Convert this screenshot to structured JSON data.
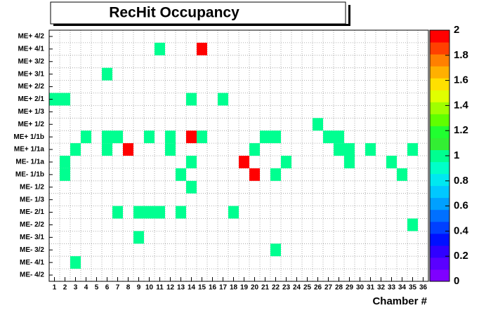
{
  "chart_data": {
    "type": "heatmap",
    "title": "RecHit Occupancy",
    "x_label": "Chamber #",
    "y_categories": [
      "ME+ 4/2",
      "ME+ 4/1",
      "ME+ 3/2",
      "ME+ 3/1",
      "ME+ 2/2",
      "ME+ 2/1",
      "ME+ 1/3",
      "ME+ 1/2",
      "ME+ 1/1b",
      "ME+ 1/1a",
      "ME- 1/1a",
      "ME- 1/1b",
      "ME- 1/2",
      "ME- 1/3",
      "ME- 2/1",
      "ME- 2/2",
      "ME- 3/1",
      "ME- 3/2",
      "ME- 4/1",
      "ME- 4/2"
    ],
    "x": [
      11,
      15,
      6,
      1,
      2,
      14,
      17,
      26,
      4,
      6,
      7,
      10,
      12,
      14,
      15,
      21,
      22,
      27,
      28,
      3,
      6,
      8,
      12,
      20,
      28,
      29,
      31,
      35,
      2,
      14,
      19,
      23,
      29,
      33,
      2,
      13,
      20,
      22,
      34,
      14,
      7,
      9,
      10,
      11,
      13,
      18,
      35,
      9,
      22,
      3
    ],
    "y": [
      "ME+ 4/1",
      "ME+ 4/1",
      "ME+ 3/1",
      "ME+ 2/1",
      "ME+ 2/1",
      "ME+ 2/1",
      "ME+ 2/1",
      "ME+ 1/2",
      "ME+ 1/1b",
      "ME+ 1/1b",
      "ME+ 1/1b",
      "ME+ 1/1b",
      "ME+ 1/1b",
      "ME+ 1/1b",
      "ME+ 1/1b",
      "ME+ 1/1b",
      "ME+ 1/1b",
      "ME+ 1/1b",
      "ME+ 1/1b",
      "ME+ 1/1a",
      "ME+ 1/1a",
      "ME+ 1/1a",
      "ME+ 1/1a",
      "ME+ 1/1a",
      "ME+ 1/1a",
      "ME+ 1/1a",
      "ME+ 1/1a",
      "ME+ 1/1a",
      "ME- 1/1a",
      "ME- 1/1a",
      "ME- 1/1a",
      "ME- 1/1a",
      "ME- 1/1a",
      "ME- 1/1a",
      "ME- 1/1b",
      "ME- 1/1b",
      "ME- 1/1b",
      "ME- 1/1b",
      "ME- 1/1b",
      "ME- 1/2",
      "ME- 2/1",
      "ME- 2/1",
      "ME- 2/1",
      "ME- 2/1",
      "ME- 2/1",
      "ME- 2/1",
      "ME- 2/2",
      "ME- 3/1",
      "ME- 3/2",
      "ME- 4/1"
    ],
    "values": [
      1,
      2,
      1,
      1,
      1,
      1,
      1,
      1,
      1,
      1,
      1,
      1,
      1,
      2,
      1,
      1,
      1,
      1,
      1,
      1,
      1,
      2,
      1,
      1,
      1,
      1,
      1,
      1,
      1,
      1,
      2,
      1,
      1,
      1,
      1,
      1,
      2,
      1,
      1,
      1,
      1,
      1,
      1,
      1,
      1,
      1,
      1,
      1,
      1,
      1
    ],
    "xlim": [
      0.5,
      36.5
    ],
    "xticks": [
      1,
      2,
      3,
      4,
      5,
      6,
      7,
      8,
      9,
      10,
      11,
      12,
      13,
      14,
      15,
      16,
      17,
      18,
      19,
      20,
      21,
      22,
      23,
      24,
      25,
      26,
      27,
      28,
      29,
      30,
      31,
      32,
      33,
      34,
      35,
      36
    ],
    "zlim": [
      0,
      2
    ],
    "zticks": [
      0,
      0.2,
      0.4,
      0.6,
      0.8,
      1,
      1.2,
      1.4,
      1.6,
      1.8,
      2
    ],
    "palette": [
      "#7f00ff",
      "#5a00ff",
      "#3000ff",
      "#0010ff",
      "#0040ff",
      "#0070ff",
      "#00a0ff",
      "#00c8ff",
      "#00e8f0",
      "#00ffc8",
      "#00ff90",
      "#33ee33",
      "#20ff30",
      "#60ff00",
      "#a0ff00",
      "#e0ff00",
      "#ffe000",
      "#ffb000",
      "#ff8000",
      "#ff4000",
      "#ff0000"
    ],
    "grid": true
  }
}
